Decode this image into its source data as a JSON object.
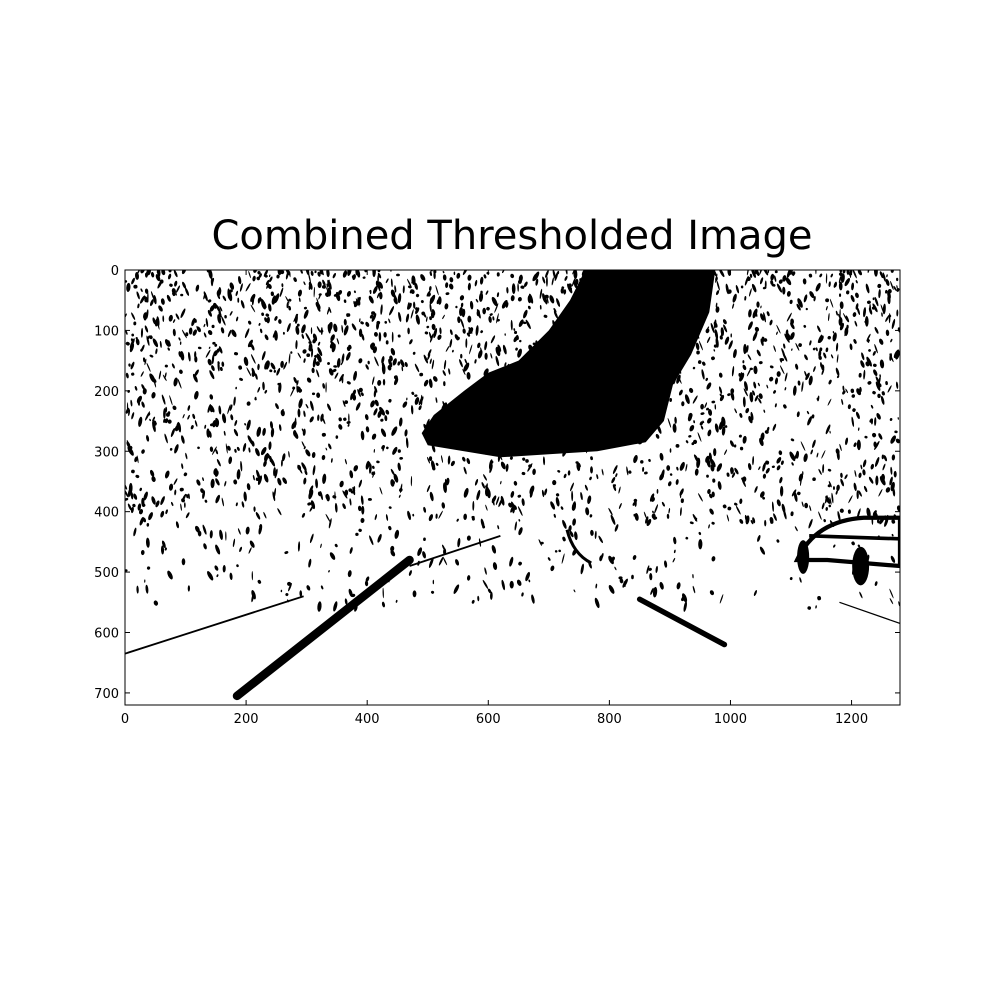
{
  "chart_data": {
    "type": "image",
    "title": "Combined Thresholded Image",
    "xlim": [
      0,
      1280
    ],
    "ylim": [
      720,
      0
    ],
    "xticks": [
      0,
      200,
      400,
      600,
      800,
      1000,
      1200
    ],
    "yticks": [
      0,
      100,
      200,
      300,
      400,
      500,
      600,
      700
    ]
  }
}
